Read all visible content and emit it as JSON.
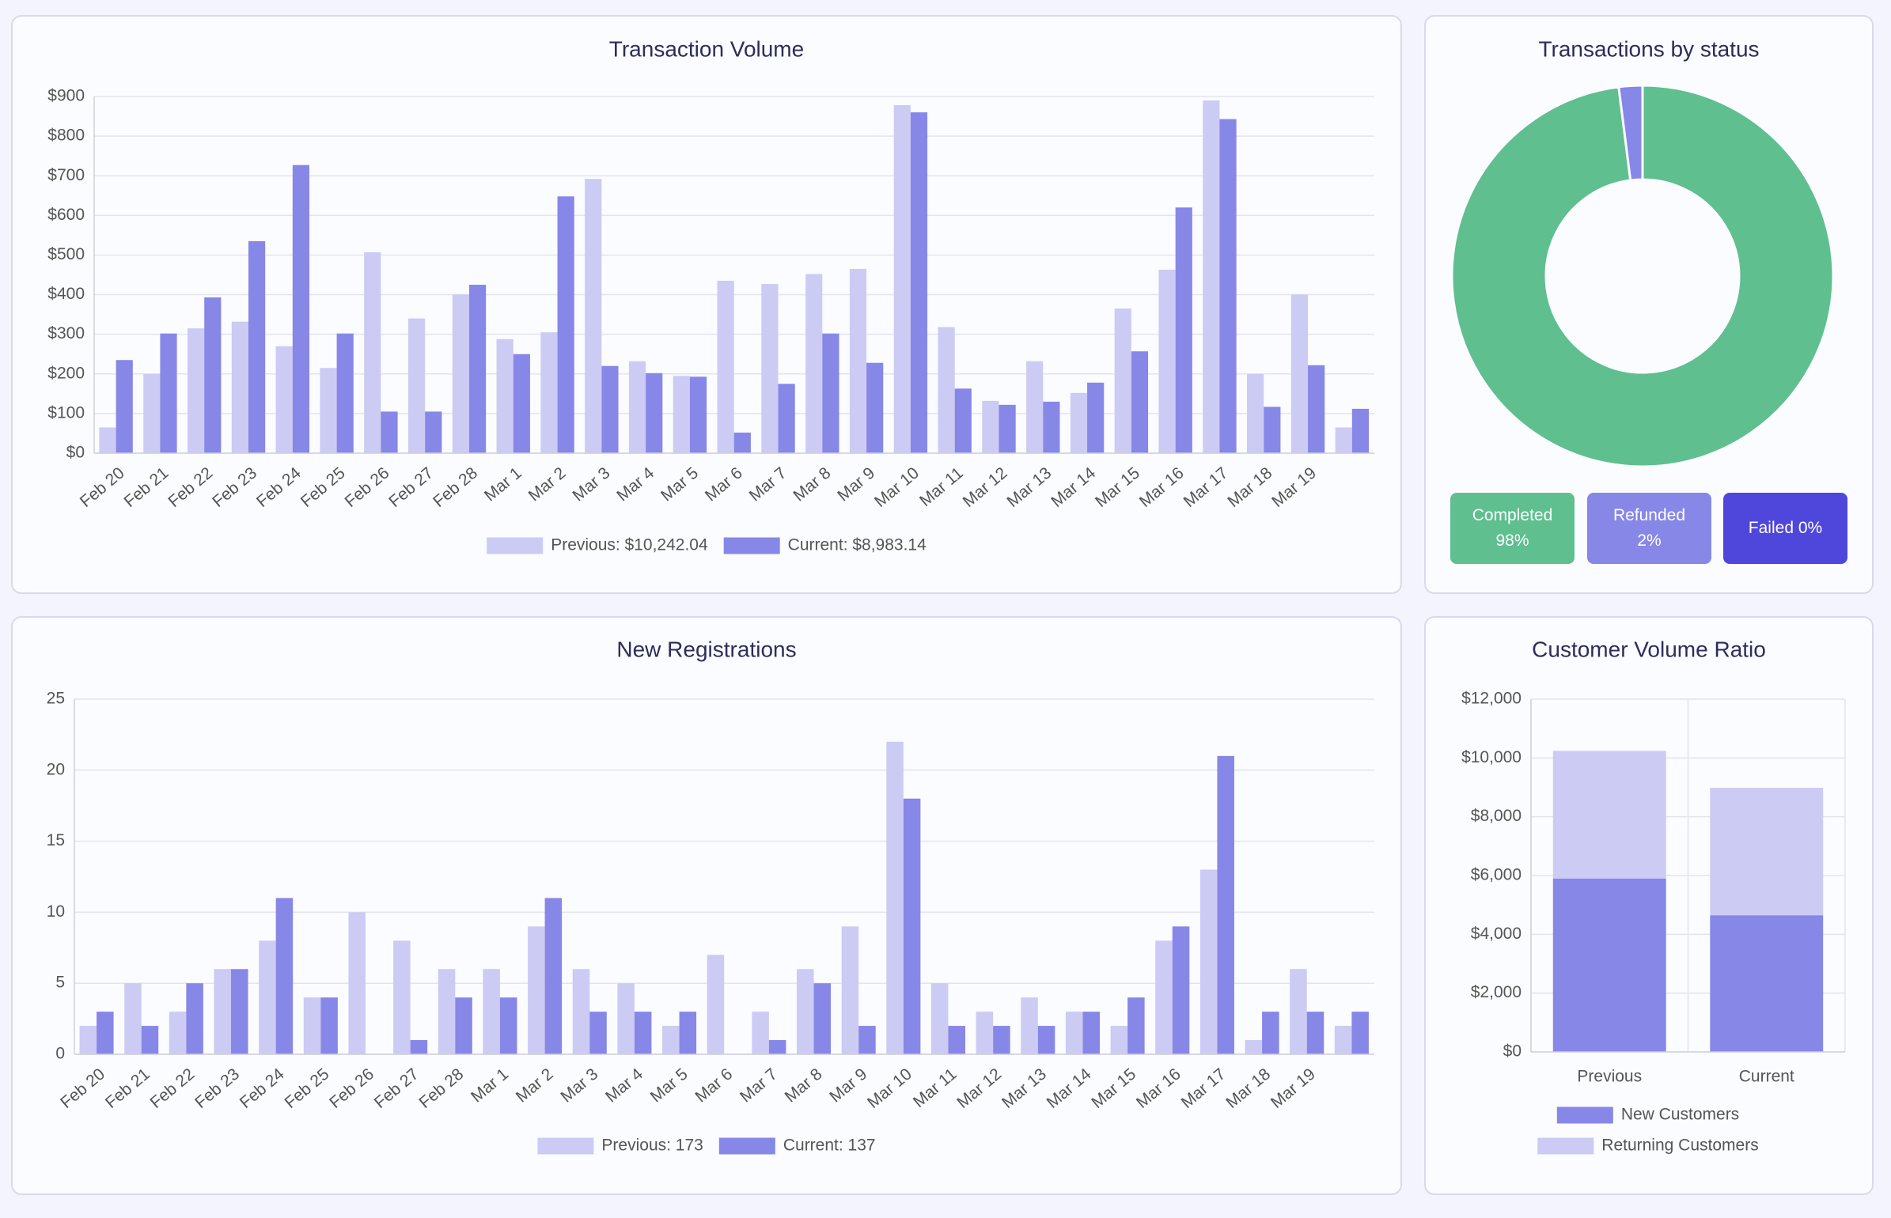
{
  "chart_data": [
    {
      "type": "bar",
      "title": "Transaction Volume",
      "categories": [
        "Feb 20",
        "Feb 21",
        "Feb 22",
        "Feb 23",
        "Feb 24",
        "Feb 25",
        "Feb 26",
        "Feb 27",
        "Feb 28",
        "Mar 1",
        "Mar 2",
        "Mar 3",
        "Mar 4",
        "Mar 5",
        "Mar 6",
        "Mar 7",
        "Mar 8",
        "Mar 9",
        "Mar 10",
        "Mar 11",
        "Mar 12",
        "Mar 13",
        "Mar 14",
        "Mar 15",
        "Mar 16",
        "Mar 17",
        "Mar 18",
        "Mar 19",
        null
      ],
      "series": [
        {
          "name": "Previous: $10,242.04",
          "color": "#cccbf4",
          "values": [
            65,
            200,
            315,
            332,
            270,
            215,
            507,
            340,
            400,
            288,
            305,
            692,
            232,
            195,
            435,
            427,
            452,
            465,
            878,
            318,
            132,
            232,
            152,
            365,
            463,
            890,
            200,
            400,
            65
          ]
        },
        {
          "name": "Current: $8,983.14",
          "color": "#8787e8",
          "values": [
            235,
            302,
            393,
            535,
            727,
            302,
            105,
            105,
            425,
            250,
            648,
            220,
            202,
            193,
            52,
            175,
            302,
            228,
            860,
            163,
            122,
            130,
            178,
            257,
            620,
            843,
            117,
            222,
            112
          ]
        }
      ],
      "ylim": [
        0,
        900
      ],
      "yticks": [
        {
          "value": 0,
          "label": "$0"
        },
        {
          "value": 100,
          "label": "$100"
        },
        {
          "value": 200,
          "label": "$200"
        },
        {
          "value": 300,
          "label": "$300"
        },
        {
          "value": 400,
          "label": "$400"
        },
        {
          "value": 500,
          "label": "$500"
        },
        {
          "value": 600,
          "label": "$600"
        },
        {
          "value": 700,
          "label": "$700"
        },
        {
          "value": 800,
          "label": "$800"
        },
        {
          "value": 900,
          "label": "$900"
        }
      ],
      "grid": true
    },
    {
      "type": "doughnut",
      "title": "Transactions by status",
      "categories": [
        "Completed",
        "Refunded",
        "Failed"
      ],
      "values": [
        98,
        2,
        0
      ],
      "value_labels": [
        "98%",
        "2%",
        "0%"
      ],
      "colors": [
        "#5fbf8f",
        "#8787e8",
        "#4f46dc"
      ]
    },
    {
      "type": "bar",
      "title": "New Registrations",
      "categories": [
        "Feb 20",
        "Feb 21",
        "Feb 22",
        "Feb 23",
        "Feb 24",
        "Feb 25",
        "Feb 26",
        "Feb 27",
        "Feb 28",
        "Mar 1",
        "Mar 2",
        "Mar 3",
        "Mar 4",
        "Mar 5",
        "Mar 6",
        "Mar 7",
        "Mar 8",
        "Mar 9",
        "Mar 10",
        "Mar 11",
        "Mar 12",
        "Mar 13",
        "Mar 14",
        "Mar 15",
        "Mar 16",
        "Mar 17",
        "Mar 18",
        "Mar 19",
        null
      ],
      "series": [
        {
          "name": "Previous: 173",
          "color": "#cccbf4",
          "values": [
            2,
            5,
            3,
            6,
            8,
            4,
            10,
            8,
            6,
            6,
            9,
            6,
            5,
            2,
            7,
            3,
            6,
            9,
            22,
            5,
            3,
            4,
            3,
            2,
            8,
            13,
            1,
            6,
            2
          ]
        },
        {
          "name": "Current: 137",
          "color": "#8787e8",
          "values": [
            3,
            2,
            5,
            6,
            11,
            4,
            0,
            1,
            4,
            4,
            11,
            3,
            3,
            3,
            0,
            1,
            5,
            2,
            18,
            2,
            2,
            2,
            3,
            4,
            9,
            21,
            3,
            3,
            3
          ]
        }
      ],
      "ylim": [
        0,
        25
      ],
      "yticks": [
        0,
        5,
        10,
        15,
        20,
        25
      ],
      "grid": true
    },
    {
      "type": "bar",
      "title": "Customer Volume Ratio",
      "stacked": true,
      "xgrid": true,
      "categories": [
        "Previous",
        "Current"
      ],
      "series": [
        {
          "name": "New Customers",
          "color": "#8787e8",
          "values": [
            5900,
            4650
          ]
        },
        {
          "name": "Returning Customers",
          "color": "#cccbf4",
          "values": [
            4342,
            4333
          ]
        }
      ],
      "ylim": [
        0,
        12000
      ],
      "yticks": [
        {
          "value": 0,
          "label": "$0"
        },
        {
          "value": 2000,
          "label": "$2,000"
        },
        {
          "value": 4000,
          "label": "$4,000"
        },
        {
          "value": 6000,
          "label": "$6,000"
        },
        {
          "value": 8000,
          "label": "$8,000"
        },
        {
          "value": 10000,
          "label": "$10,000"
        },
        {
          "value": 12000,
          "label": "$12,000"
        }
      ],
      "grid": true
    }
  ]
}
